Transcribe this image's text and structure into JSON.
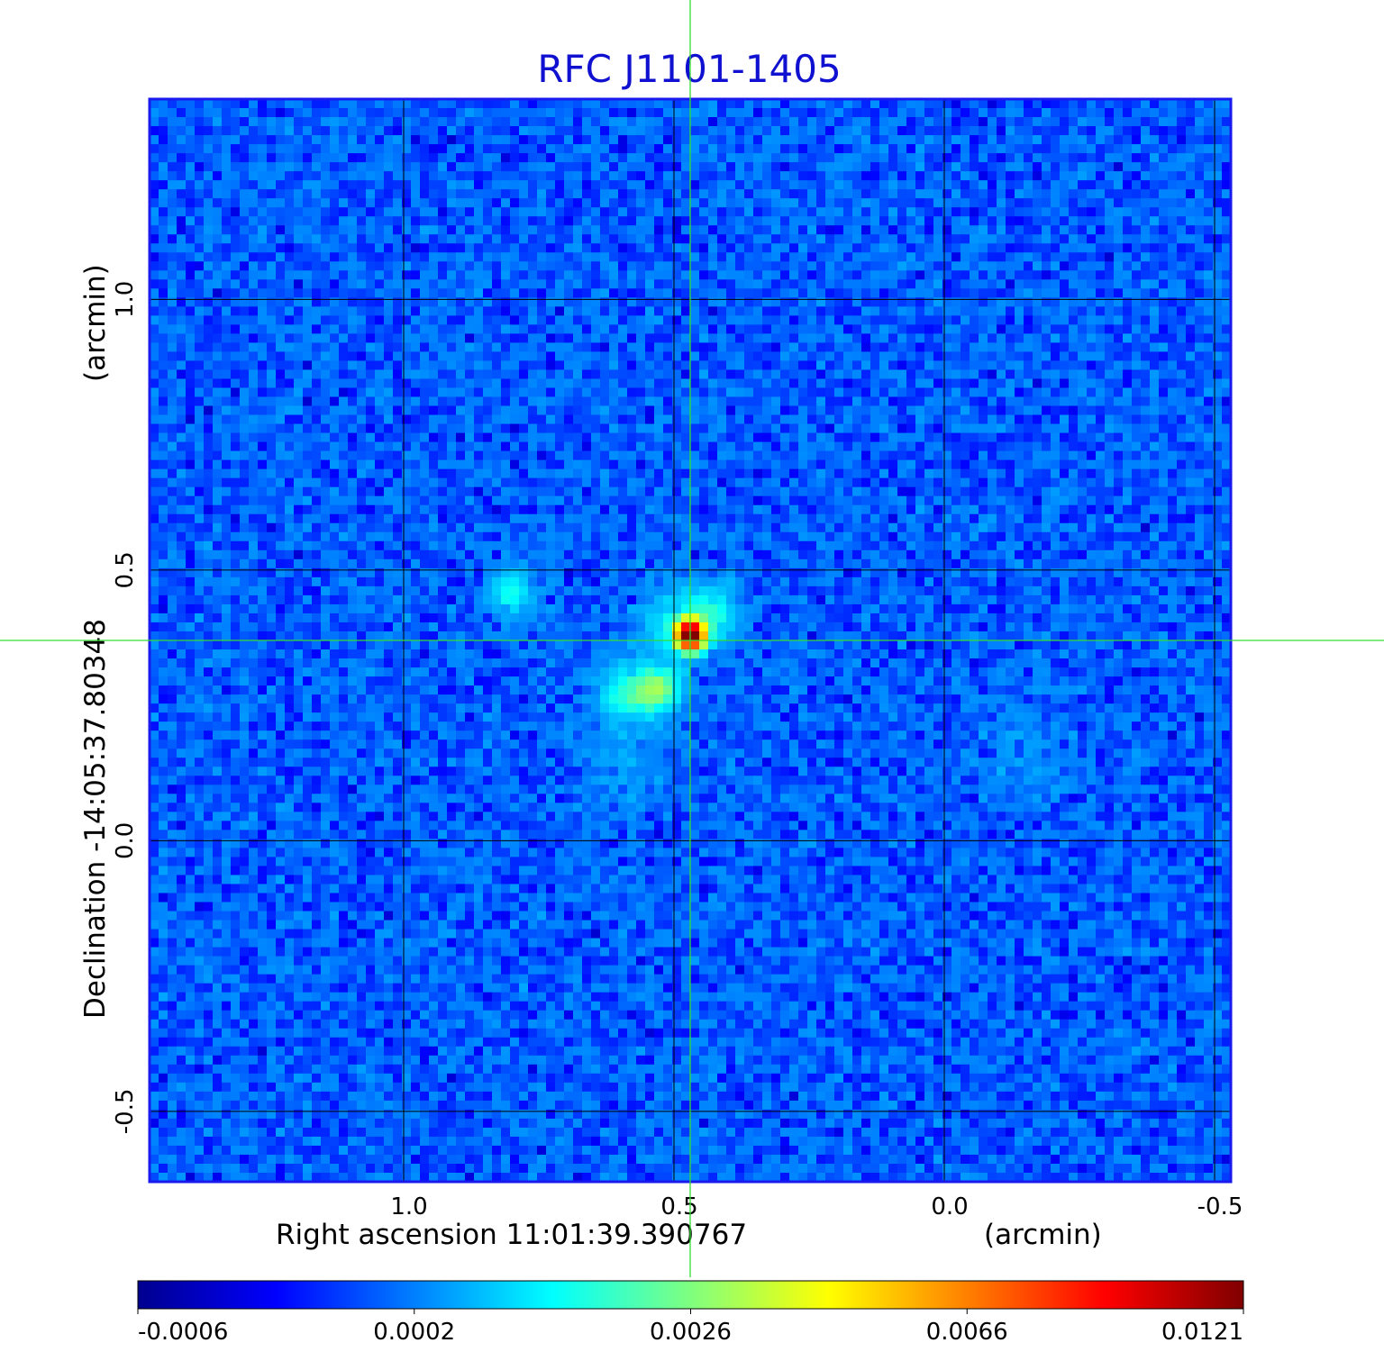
{
  "chart_data": {
    "type": "heatmap",
    "title": "RFC J1101-1405",
    "xlabel": "Right ascension  11:01:39.390767",
    "x_unit": "(arcmin)",
    "ylabel": "Declination  -14:05:37.80348",
    "y_unit": "(arcmin)",
    "x_ticks": [
      "1.0",
      "0.5",
      "0.0",
      "-0.5"
    ],
    "x_tick_values": [
      1.0,
      0.5,
      0.0,
      -0.5
    ],
    "y_ticks": [
      "1.0",
      "0.5",
      "0.0",
      "-0.5"
    ],
    "y_tick_values": [
      1.0,
      0.5,
      0.0,
      -0.5
    ],
    "xlim": [
      1.47,
      -0.53
    ],
    "ylim": [
      -0.63,
      1.37
    ],
    "x_reversed": true,
    "grid": true,
    "crosshair": {
      "x": 0.47,
      "y": 0.37,
      "color": "#33dd33"
    },
    "colormap": "jet",
    "colorbar": {
      "ticks": [
        "-0.0006",
        "0.0002",
        "0.0026",
        "0.0066",
        "0.0121"
      ],
      "tick_values": [
        -0.0006,
        0.0002,
        0.0026,
        0.0066,
        0.0121
      ]
    },
    "background_level": 0.0001,
    "sources": [
      {
        "ra": 0.47,
        "dec": 0.38,
        "peak": 0.0121,
        "sigma": 0.018
      },
      {
        "ra": 0.43,
        "dec": 0.42,
        "peak": 0.0014,
        "sigma": 0.035
      },
      {
        "ra": 0.5,
        "dec": 0.4,
        "peak": 0.001,
        "sigma": 0.045
      },
      {
        "ra": 0.53,
        "dec": 0.28,
        "peak": 0.0028,
        "sigma": 0.028
      },
      {
        "ra": 0.59,
        "dec": 0.27,
        "peak": 0.0016,
        "sigma": 0.035
      },
      {
        "ra": 0.6,
        "dec": 0.15,
        "peak": 0.0004,
        "sigma": 0.05
      },
      {
        "ra": 0.8,
        "dec": 0.46,
        "peak": 0.0014,
        "sigma": 0.028
      },
      {
        "ra": -0.15,
        "dec": 0.18,
        "peak": 0.0003,
        "sigma": 0.06
      }
    ]
  }
}
